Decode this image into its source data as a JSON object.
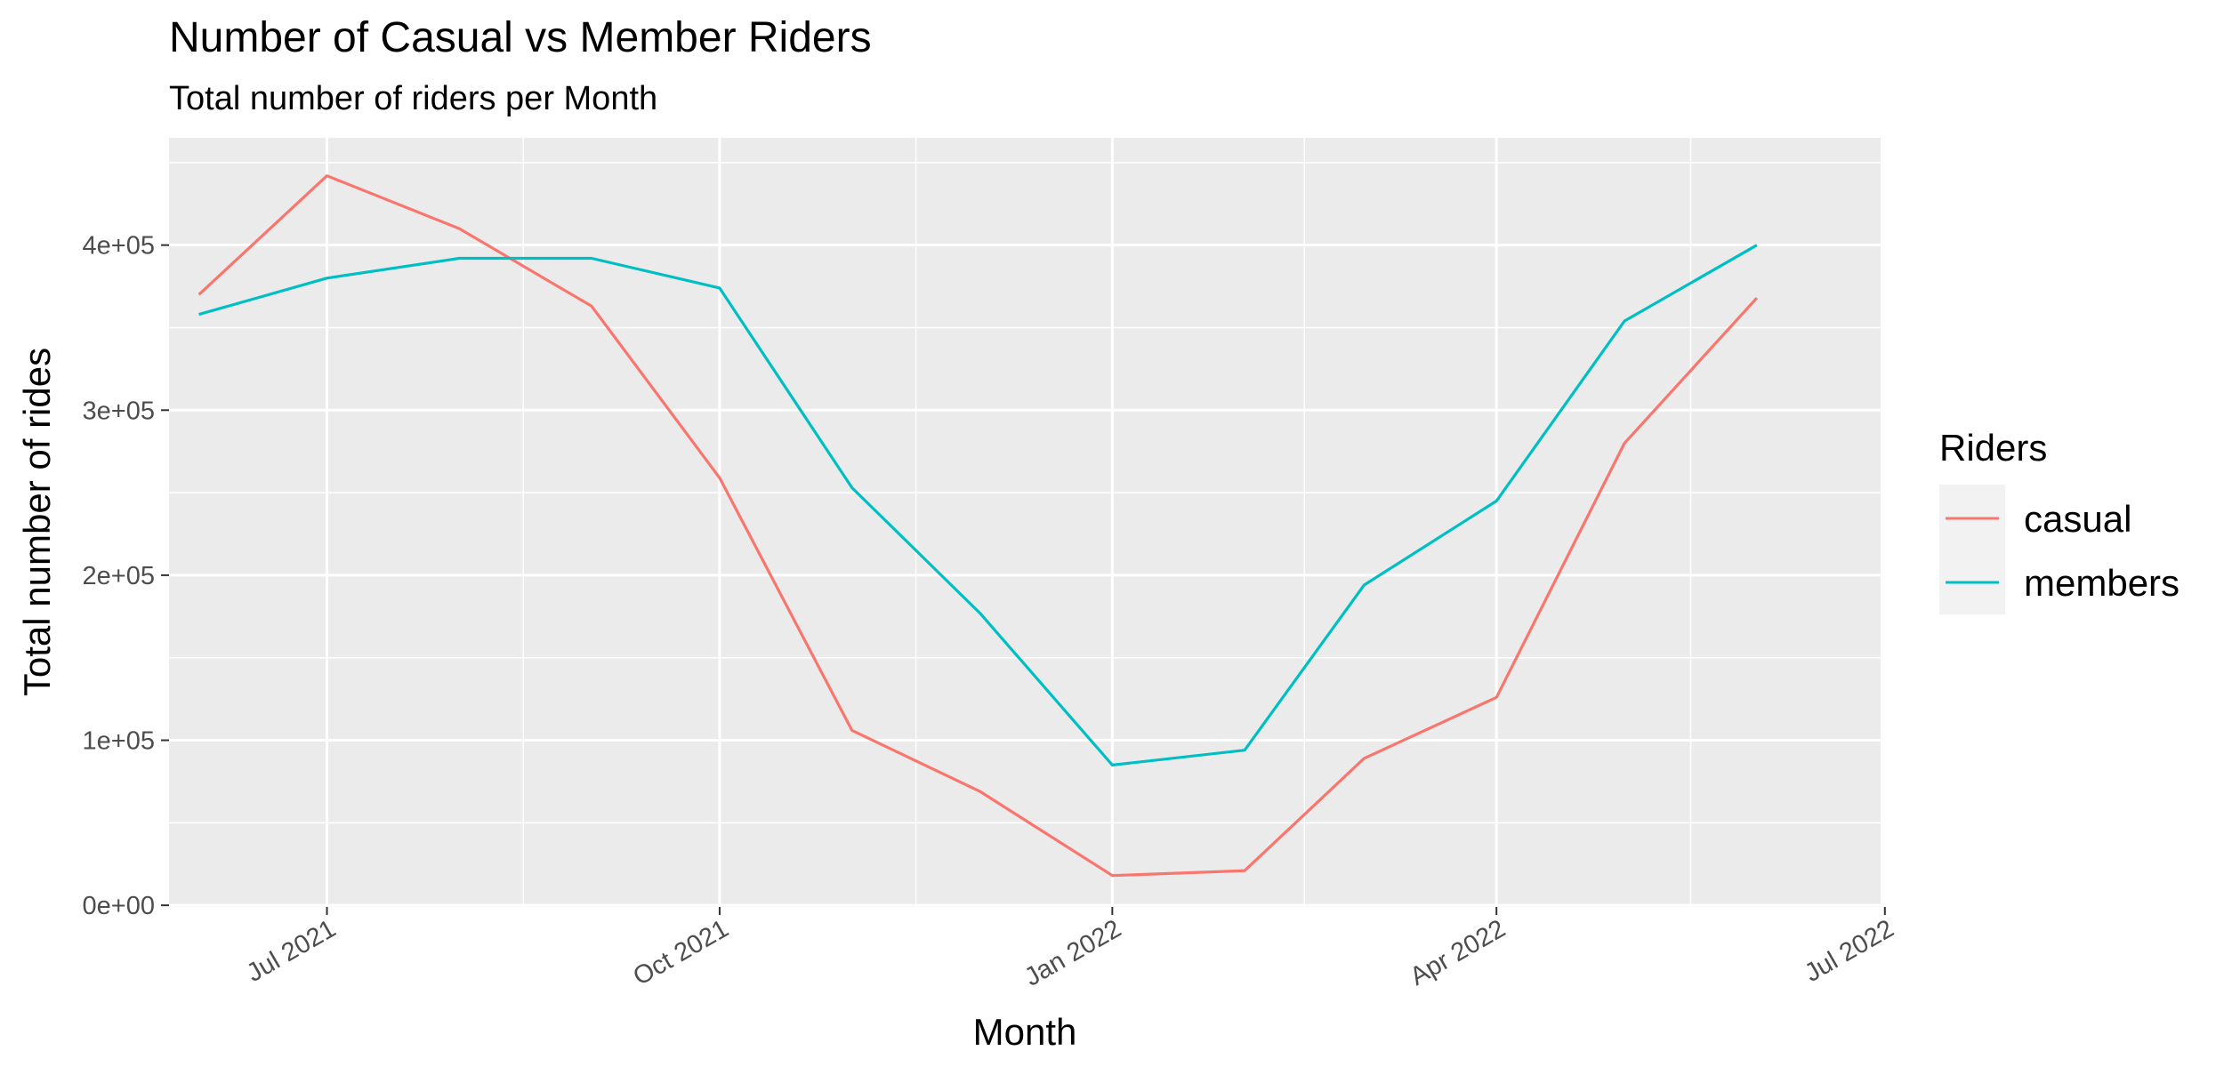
{
  "chart_data": {
    "type": "line",
    "title": "Number of Casual vs Member Riders",
    "subtitle": "Total number of riders per Month",
    "xlabel": "Month",
    "ylabel": "Total number of rides",
    "x_ticks": [
      {
        "date": "2021-07-01",
        "label": "Jul 2021"
      },
      {
        "date": "2021-10-01",
        "label": "Oct 2021"
      },
      {
        "date": "2022-01-01",
        "label": "Jan 2022"
      },
      {
        "date": "2022-04-01",
        "label": "Apr 2022"
      },
      {
        "date": "2022-07-01",
        "label": "Jul 2022"
      }
    ],
    "y_ticks": [
      {
        "value": 0,
        "label": "0e+00"
      },
      {
        "value": 100000,
        "label": "1e+05"
      },
      {
        "value": 200000,
        "label": "2e+05"
      },
      {
        "value": 300000,
        "label": "3e+05"
      },
      {
        "value": 400000,
        "label": "4e+05"
      }
    ],
    "xlim": [
      "2021-05-25",
      "2022-06-30"
    ],
    "ylim": [
      -1000,
      465000
    ],
    "grid": true,
    "legend": {
      "title": "Riders",
      "position": "right"
    },
    "x": [
      "2021-06-01",
      "2021-07-01",
      "2021-08-01",
      "2021-09-01",
      "2021-10-01",
      "2021-11-01",
      "2021-12-01",
      "2022-01-01",
      "2022-02-01",
      "2022-03-01",
      "2022-04-01",
      "2022-05-01",
      "2022-06-01"
    ],
    "series": [
      {
        "name": "casual",
        "color": "#F8766D",
        "values": [
          370000,
          442000,
          410000,
          363000,
          259000,
          106000,
          69000,
          18000,
          21000,
          89000,
          126000,
          280000,
          368000
        ]
      },
      {
        "name": "members",
        "color": "#00BFC4",
        "values": [
          358000,
          380000,
          392000,
          392000,
          374000,
          253000,
          177000,
          85000,
          94000,
          194000,
          245000,
          354000,
          400000
        ]
      }
    ]
  }
}
